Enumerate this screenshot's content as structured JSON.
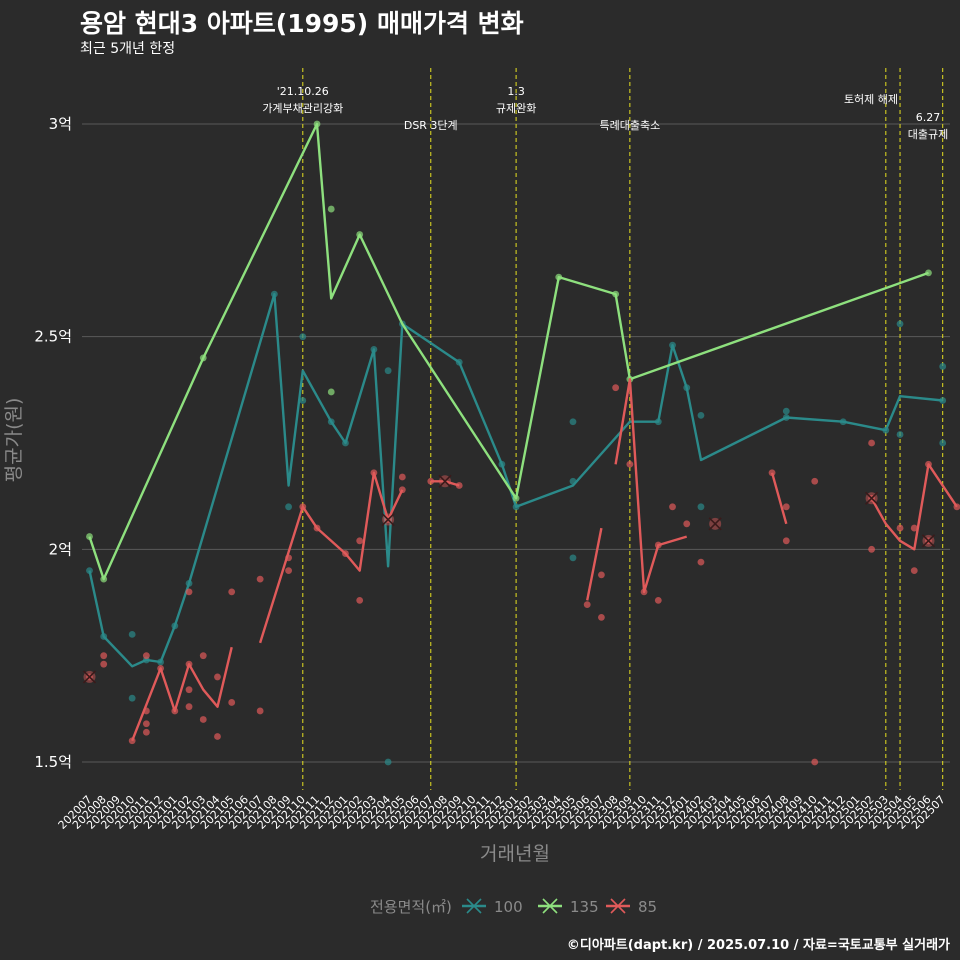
{
  "title": "용암 현대3 아파트(1995) 매매가격 변화",
  "subtitle": "최근 5개년 한정",
  "caption": "©디아파트(dapt.kr) / 2025.07.10 / 자료=국토교통부 실거래가",
  "colors": {
    "100": "#2b8a8a",
    "135": "#8ee07e",
    "85": "#e05a5a",
    "event_line": "#e6e020",
    "grid": "#5a5a5a"
  },
  "chart_data": {
    "type": "line",
    "xlabel": "거래년월",
    "ylabel": "평균가(원)",
    "x_ticks": [
      "202007",
      "202008",
      "202009",
      "202010",
      "202011",
      "202012",
      "202101",
      "202102",
      "202103",
      "202104",
      "202105",
      "202106",
      "202107",
      "202108",
      "202109",
      "202110",
      "202111",
      "202112",
      "202201",
      "202202",
      "202203",
      "202204",
      "202205",
      "202206",
      "202207",
      "202208",
      "202209",
      "202210",
      "202211",
      "202212",
      "202301",
      "202302",
      "202303",
      "202304",
      "202305",
      "202306",
      "202307",
      "202308",
      "202309",
      "202310",
      "202311",
      "202312",
      "202401",
      "202402",
      "202403",
      "202404",
      "202405",
      "202406",
      "202407",
      "202408",
      "202409",
      "202410",
      "202411",
      "202412",
      "202501",
      "202502",
      "202503",
      "202504",
      "202505",
      "202506",
      "202507"
    ],
    "y_ticks": [
      {
        "value": 15000,
        "label": "1.5억"
      },
      {
        "value": 20000,
        "label": "2억"
      },
      {
        "value": 25000,
        "label": "2.5억"
      },
      {
        "value": 30000,
        "label": "3억"
      }
    ],
    "ylim": [
      14400,
      31200
    ],
    "legend_title": "전용면적(㎡)",
    "legend_placement": "bottom",
    "series": [
      {
        "name": "100",
        "line": [
          [
            0,
            19500
          ],
          [
            1,
            17950
          ],
          [
            3,
            17250
          ],
          [
            4,
            17400
          ],
          [
            5,
            17350
          ],
          [
            6,
            18200
          ],
          [
            7,
            19200
          ],
          [
            13,
            26000
          ],
          [
            14,
            21500
          ],
          [
            15,
            24200
          ],
          [
            17,
            23000
          ],
          [
            18,
            22500
          ],
          [
            20,
            24700
          ],
          [
            21,
            19600
          ],
          [
            22,
            25300
          ],
          [
            26,
            24400
          ],
          [
            29,
            22000
          ],
          [
            30,
            21000
          ],
          [
            34,
            21500
          ],
          [
            38,
            23000
          ],
          [
            40,
            23000
          ],
          [
            41,
            24800
          ],
          [
            42,
            23800
          ],
          [
            43,
            22100
          ],
          [
            49,
            23100
          ],
          [
            53,
            23000
          ],
          [
            56,
            22800
          ],
          [
            57,
            23600
          ],
          [
            60,
            23500
          ]
        ],
        "points": [
          [
            0,
            19500
          ],
          [
            1,
            17950
          ],
          [
            3,
            18000
          ],
          [
            3,
            16500
          ],
          [
            4,
            17400
          ],
          [
            5,
            17350
          ],
          [
            6,
            18200
          ],
          [
            7,
            19200
          ],
          [
            13,
            26000
          ],
          [
            14,
            21000
          ],
          [
            15,
            25000
          ],
          [
            15,
            23500
          ],
          [
            17,
            23000
          ],
          [
            18,
            22500
          ],
          [
            20,
            24700
          ],
          [
            21,
            15000
          ],
          [
            21,
            24200
          ],
          [
            22,
            25300
          ],
          [
            26,
            24400
          ],
          [
            29,
            22000
          ],
          [
            30,
            21000
          ],
          [
            34,
            23000
          ],
          [
            34,
            21600
          ],
          [
            34,
            19800
          ],
          [
            40,
            23000
          ],
          [
            41,
            24800
          ],
          [
            42,
            23800
          ],
          [
            43,
            23150
          ],
          [
            43,
            21000
          ],
          [
            49,
            23100
          ],
          [
            49,
            23250
          ],
          [
            53,
            23000
          ],
          [
            56,
            22800
          ],
          [
            57,
            25300
          ],
          [
            57,
            22700
          ],
          [
            60,
            23500
          ],
          [
            60,
            24300
          ],
          [
            60,
            22500
          ]
        ]
      },
      {
        "name": "135",
        "line": [
          [
            0,
            20300
          ],
          [
            1,
            19300
          ],
          [
            8,
            24500
          ],
          [
            16,
            30000
          ],
          [
            17,
            25900
          ],
          [
            19,
            27400
          ],
          [
            22,
            25300
          ],
          [
            30,
            21200
          ],
          [
            33,
            26400
          ],
          [
            37,
            26000
          ],
          [
            38,
            24000
          ],
          [
            59,
            26500
          ]
        ],
        "points": [
          [
            0,
            20300
          ],
          [
            1,
            19300
          ],
          [
            8,
            24500
          ],
          [
            16,
            30000
          ],
          [
            17,
            28000
          ],
          [
            17,
            23700
          ],
          [
            19,
            27400
          ],
          [
            30,
            21200
          ],
          [
            33,
            26400
          ],
          [
            37,
            26000
          ],
          [
            38,
            24000
          ],
          [
            59,
            26500
          ]
        ]
      },
      {
        "name": "85",
        "line_segments": [
          [
            [
              3,
              15500
            ],
            [
              5,
              17200
            ],
            [
              6,
              16200
            ],
            [
              7,
              17300
            ],
            [
              8,
              16700
            ],
            [
              9,
              16300
            ],
            [
              10,
              17700
            ]
          ],
          [
            [
              12,
              17800
            ],
            [
              15,
              21000
            ],
            [
              16,
              20500
            ],
            [
              18,
              19900
            ],
            [
              19,
              19500
            ],
            [
              20,
              21800
            ],
            [
              21,
              20700
            ],
            [
              22,
              21400
            ]
          ],
          [
            [
              24,
              21600
            ],
            [
              25,
              21600
            ],
            [
              26,
              21500
            ]
          ],
          [
            [
              35,
              18800
            ],
            [
              36,
              20500
            ]
          ],
          [
            [
              37,
              22000
            ],
            [
              38,
              24000
            ],
            [
              39,
              19000
            ],
            [
              40,
              20100
            ],
            [
              42,
              20300
            ]
          ],
          [
            [
              48,
              21800
            ],
            [
              49,
              20600
            ]
          ],
          [
            [
              55,
              21200
            ],
            [
              56,
              20600
            ],
            [
              57,
              20200
            ],
            [
              58,
              20000
            ],
            [
              59,
              22000
            ],
            [
              61,
              21000
            ]
          ]
        ],
        "points": [
          [
            0,
            17000
          ],
          [
            1,
            17500
          ],
          [
            1,
            17300
          ],
          [
            3,
            15500
          ],
          [
            4,
            17500
          ],
          [
            4,
            16200
          ],
          [
            4,
            15900
          ],
          [
            4,
            15700
          ],
          [
            5,
            17200
          ],
          [
            6,
            16200
          ],
          [
            7,
            17300
          ],
          [
            7,
            16700
          ],
          [
            7,
            16300
          ],
          [
            7,
            19000
          ],
          [
            8,
            17500
          ],
          [
            8,
            16000
          ],
          [
            9,
            17000
          ],
          [
            9,
            15600
          ],
          [
            10,
            16400
          ],
          [
            10,
            19000
          ],
          [
            12,
            19300
          ],
          [
            12,
            16200
          ],
          [
            14,
            19800
          ],
          [
            14,
            19500
          ],
          [
            15,
            21000
          ],
          [
            16,
            20500
          ],
          [
            18,
            19900
          ],
          [
            19,
            18800
          ],
          [
            19,
            20200
          ],
          [
            20,
            21800
          ],
          [
            21,
            20700
          ],
          [
            22,
            21700
          ],
          [
            22,
            21400
          ],
          [
            24,
            21600
          ],
          [
            26,
            21500
          ],
          [
            35,
            18700
          ],
          [
            36,
            19400
          ],
          [
            36,
            18400
          ],
          [
            37,
            23800
          ],
          [
            38,
            22000
          ],
          [
            39,
            19000
          ],
          [
            40,
            18800
          ],
          [
            40,
            20100
          ],
          [
            41,
            21000
          ],
          [
            42,
            20600
          ],
          [
            43,
            19700
          ],
          [
            48,
            21800
          ],
          [
            49,
            21000
          ],
          [
            49,
            20200
          ],
          [
            51,
            21600
          ],
          [
            51,
            15000
          ],
          [
            55,
            22500
          ],
          [
            55,
            21200
          ],
          [
            55,
            20000
          ],
          [
            57,
            20500
          ],
          [
            58,
            19500
          ],
          [
            58,
            20500
          ],
          [
            59,
            22000
          ],
          [
            59,
            20200
          ],
          [
            61,
            21000
          ]
        ],
        "markers_x": [
          [
            0,
            17000
          ],
          [
            21,
            20700
          ],
          [
            25,
            21600
          ],
          [
            44,
            20600
          ],
          [
            55,
            21200
          ],
          [
            59,
            20200
          ]
        ]
      }
    ],
    "events": [
      {
        "x": 15,
        "lines": [
          "'21.10.26",
          "가계부채관리강화"
        ]
      },
      {
        "x": 24,
        "lines": [
          "DSR 3단계"
        ]
      },
      {
        "x": 30,
        "lines": [
          "1.3",
          "규제완화"
        ]
      },
      {
        "x": 38,
        "lines": [
          "특례대출축소"
        ]
      },
      {
        "x": 56,
        "lines": [
          "토허제 해제"
        ]
      },
      {
        "x": 57,
        "lines": []
      },
      {
        "x": 60,
        "lines": [
          "6.27",
          "대출규제"
        ]
      }
    ]
  }
}
